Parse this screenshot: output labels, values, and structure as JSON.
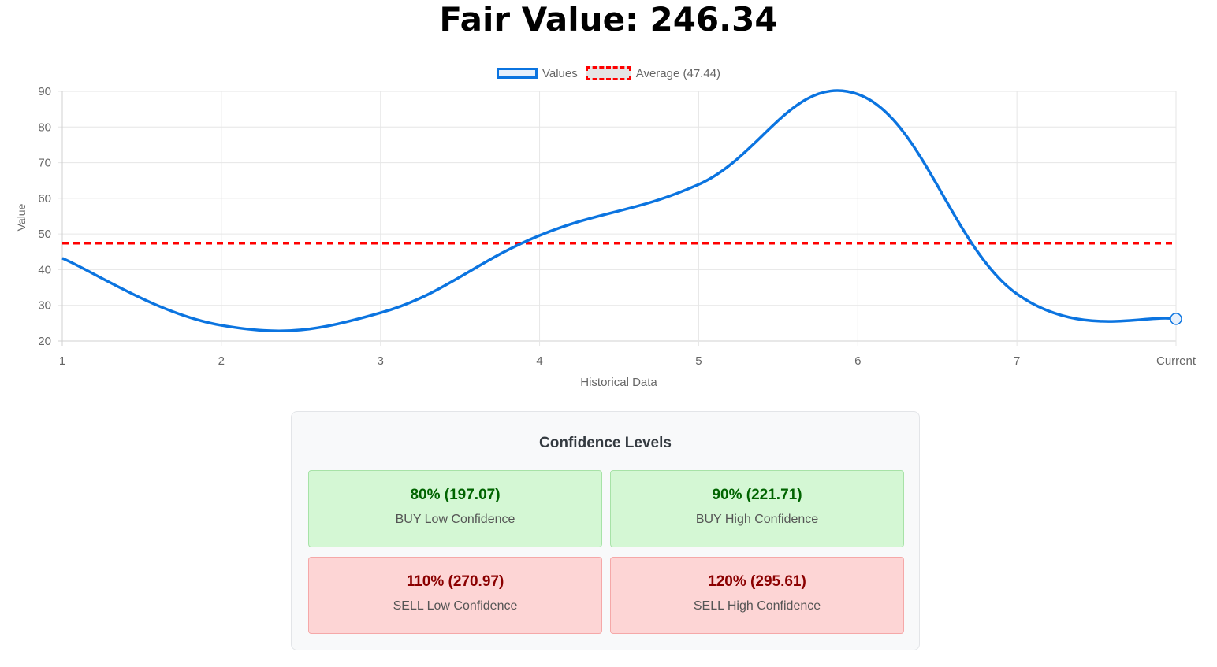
{
  "header": {
    "title": "Fair Value: 246.34"
  },
  "legend": [
    {
      "label": "Values",
      "color": "#0b74e0"
    },
    {
      "label": "Average (47.44)",
      "color": "#ff0000"
    }
  ],
  "chart_data": {
    "type": "line",
    "title": "Fair Value: 246.34",
    "xlabel": "Historical Data",
    "ylabel": "Value",
    "categories": [
      "1",
      "2",
      "3",
      "4",
      "5",
      "6",
      "7",
      "Current"
    ],
    "series": [
      {
        "name": "Values",
        "color": "#0b74e0",
        "values": [
          43.2,
          24.4,
          27.9,
          49.6,
          63.9,
          89.2,
          33.2,
          26.2
        ]
      },
      {
        "name": "Average (47.44)",
        "color": "#ff0000",
        "style": "dashed",
        "values": [
          47.44,
          47.44,
          47.44,
          47.44,
          47.44,
          47.44,
          47.44,
          47.44
        ]
      }
    ],
    "ylim": [
      20,
      90
    ],
    "yticks": [
      20,
      30,
      40,
      50,
      60,
      70,
      80,
      90
    ],
    "grid": true,
    "legend_position": "top"
  },
  "confidence": {
    "title": "Confidence Levels",
    "cards": [
      {
        "value": "80% (197.07)",
        "label": "BUY Low Confidence",
        "type": "buy"
      },
      {
        "value": "90% (221.71)",
        "label": "BUY High Confidence",
        "type": "buy"
      },
      {
        "value": "110% (270.97)",
        "label": "SELL Low Confidence",
        "type": "sell"
      },
      {
        "value": "120% (295.61)",
        "label": "SELL High Confidence",
        "type": "sell"
      }
    ]
  }
}
